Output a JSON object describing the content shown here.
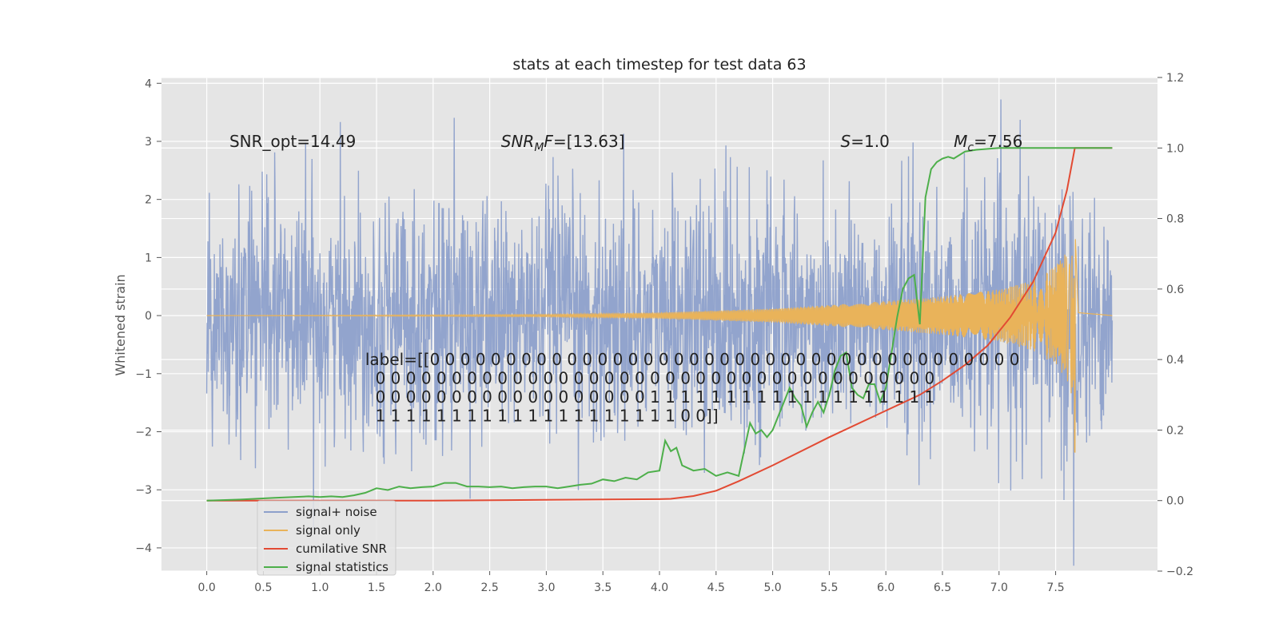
{
  "chart_data": {
    "type": "line",
    "title": "stats at each timestep for test data 63",
    "ylabel": "Whitened strain",
    "xlim": [
      -0.4,
      8.4
    ],
    "ylim_left": [
      -4.4,
      4.1
    ],
    "ylim_right": [
      -0.2,
      1.2
    ],
    "x_ticks": [
      0.0,
      0.5,
      1.0,
      1.5,
      2.0,
      2.5,
      3.0,
      3.5,
      4.0,
      4.5,
      5.0,
      5.5,
      6.0,
      6.5,
      7.0,
      7.5
    ],
    "x_tick_labels": [
      "0.0",
      "0.5",
      "1.0",
      "1.5",
      "2.0",
      "2.5",
      "3.0",
      "3.5",
      "4.0",
      "4.5",
      "5.0",
      "5.5",
      "6.0",
      "6.5",
      "7.0",
      "7.5"
    ],
    "y_ticks_left": [
      -4,
      -3,
      -2,
      -1,
      0,
      1,
      2,
      3,
      4
    ],
    "y_tick_labels_left": [
      "−4",
      "−3",
      "−2",
      "−1",
      "0",
      "1",
      "2",
      "3",
      "4"
    ],
    "y_ticks_right": [
      -0.2,
      0.0,
      0.2,
      0.4,
      0.6,
      0.8,
      1.0,
      1.2
    ],
    "y_tick_labels_right": [
      "−0.2",
      "0.0",
      "0.2",
      "0.4",
      "0.6",
      "0.8",
      "1.0",
      "1.2"
    ],
    "grid": true,
    "legend_position": "lower-left",
    "annotations": [
      {
        "id": "snr-opt",
        "text": "SNR_opt=14.49",
        "x": 0.2,
        "y": 3.0
      },
      {
        "id": "snr-mf",
        "text": "SNR_M F=[13.63]",
        "x": 2.6,
        "y": 3.0
      },
      {
        "id": "s-value",
        "text": "S=1.0",
        "x": 5.6,
        "y": 3.0
      },
      {
        "id": "mc-value",
        "text": "M_c=7.56",
        "x": 6.6,
        "y": 3.0
      }
    ],
    "label_lines": [
      "label=[[0 0 0 0 0 0 0 0 0 0 0 0 0 0 0 0 0 0 0 0 0 0 0 0 0 0 0 0 0 0 0 0 0 0 0 0 0 0 0",
      "  0 0 0 0 0 0 0 0 0 0 0 0 0 0 0 0 0 0 0 0 0 0 0 0 0 0 0 0 0 0 0 0 0 0 0 0 0",
      "  0 0 0 0 0 0 0 0 0 0 0 0 0 0 0 0 0 0 1 1 1 1 1 1 1 1 1 1 1 1 1 1 1 1 1 1 1",
      "  1 1 1 1 1 1 1 1 1 1 1 1 1 1 1 1 1 1 1 1 0 0]]"
    ],
    "label_anchor": {
      "x": 1.4,
      "y": -0.85
    },
    "series": [
      {
        "name": "signal+ noise",
        "axis": "left",
        "color": "#8da0cb",
        "x_range": [
          0.0,
          8.0
        ],
        "noise_sigma": 1.0,
        "note_values": "dense Gaussian whitened noise plus signal"
      },
      {
        "name": "signal only",
        "axis": "left",
        "color": "#e9b35a",
        "x_range": [
          0.0,
          8.0
        ],
        "merger_time": 7.67,
        "envelope": {
          "x": [
            0.0,
            3.0,
            4.0,
            5.0,
            5.5,
            6.0,
            6.5,
            7.0,
            7.3,
            7.5,
            7.6,
            7.67,
            7.7,
            8.0
          ],
          "y": [
            0.0,
            0.02,
            0.05,
            0.12,
            0.18,
            0.25,
            0.33,
            0.45,
            0.6,
            0.85,
            1.1,
            1.55,
            0.05,
            0.0
          ]
        }
      },
      {
        "name": "cumilative SNR",
        "axis": "right",
        "color": "#e24a33",
        "x": [
          0.0,
          1.0,
          2.0,
          3.0,
          4.0,
          4.1,
          4.3,
          4.5,
          4.7,
          5.0,
          5.5,
          6.0,
          6.3,
          6.5,
          6.7,
          6.9,
          7.1,
          7.3,
          7.5,
          7.6,
          7.67,
          7.7,
          8.0
        ],
        "y": [
          0.0,
          0.0,
          0.0,
          0.002,
          0.004,
          0.005,
          0.013,
          0.028,
          0.055,
          0.1,
          0.18,
          0.255,
          0.3,
          0.34,
          0.385,
          0.44,
          0.52,
          0.62,
          0.76,
          0.88,
          1.0,
          1.0,
          1.0
        ]
      },
      {
        "name": "signal statistics",
        "axis": "right",
        "color": "#4daf4a",
        "x": [
          0.0,
          0.3,
          0.6,
          0.9,
          1.0,
          1.1,
          1.2,
          1.3,
          1.4,
          1.5,
          1.6,
          1.7,
          1.8,
          1.9,
          2.0,
          2.1,
          2.2,
          2.3,
          2.4,
          2.5,
          2.6,
          2.7,
          2.8,
          2.9,
          3.0,
          3.1,
          3.2,
          3.3,
          3.4,
          3.5,
          3.6,
          3.7,
          3.8,
          3.9,
          4.0,
          4.05,
          4.1,
          4.15,
          4.2,
          4.3,
          4.4,
          4.5,
          4.6,
          4.7,
          4.8,
          4.85,
          4.9,
          4.95,
          5.0,
          5.05,
          5.1,
          5.15,
          5.2,
          5.25,
          5.3,
          5.35,
          5.4,
          5.45,
          5.5,
          5.55,
          5.6,
          5.65,
          5.7,
          5.75,
          5.8,
          5.85,
          5.9,
          5.95,
          6.0,
          6.05,
          6.1,
          6.15,
          6.2,
          6.25,
          6.3,
          6.35,
          6.4,
          6.45,
          6.5,
          6.55,
          6.6,
          6.65,
          6.7,
          6.8,
          7.0,
          7.5,
          8.0
        ],
        "y": [
          0.0,
          0.003,
          0.008,
          0.012,
          0.01,
          0.012,
          0.01,
          0.015,
          0.022,
          0.035,
          0.03,
          0.04,
          0.035,
          0.038,
          0.04,
          0.05,
          0.05,
          0.04,
          0.04,
          0.038,
          0.04,
          0.035,
          0.038,
          0.04,
          0.04,
          0.035,
          0.04,
          0.045,
          0.048,
          0.06,
          0.055,
          0.065,
          0.06,
          0.08,
          0.085,
          0.17,
          0.14,
          0.15,
          0.1,
          0.085,
          0.09,
          0.07,
          0.08,
          0.07,
          0.22,
          0.19,
          0.2,
          0.18,
          0.2,
          0.24,
          0.28,
          0.32,
          0.29,
          0.27,
          0.21,
          0.25,
          0.28,
          0.25,
          0.3,
          0.37,
          0.41,
          0.42,
          0.32,
          0.3,
          0.29,
          0.33,
          0.33,
          0.28,
          0.32,
          0.42,
          0.52,
          0.6,
          0.63,
          0.64,
          0.5,
          0.86,
          0.94,
          0.96,
          0.97,
          0.975,
          0.97,
          0.98,
          0.99,
          0.995,
          1.0,
          1.0,
          1.0
        ]
      }
    ]
  }
}
